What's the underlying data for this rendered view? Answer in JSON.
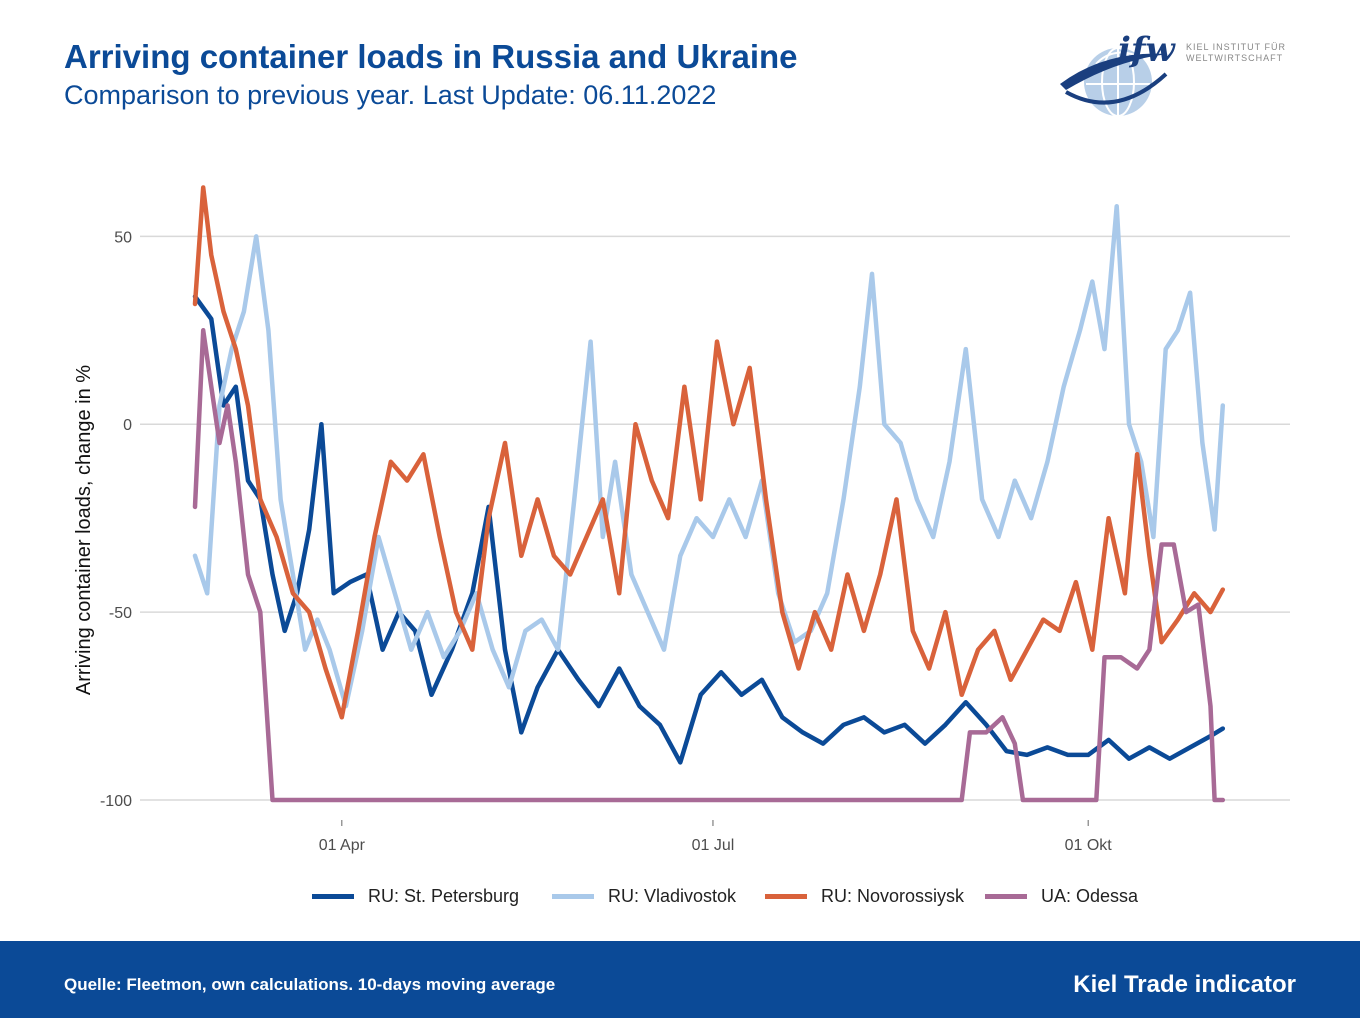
{
  "header": {
    "title": "Arriving container loads in Russia and Ukraine",
    "subtitle": "Comparison to previous year. Last Update: 06.11.2022"
  },
  "logo": {
    "mark": "ifw",
    "line1": "KIEL INSTITUT FÜR",
    "line2": "WELTWIRTSCHAFT",
    "icon": "globe-icon"
  },
  "footer": {
    "source": "Quelle: Fleetmon, own calculations. 10-days moving average",
    "brand": "Kiel Trade indicator",
    "background": "#0b4a97"
  },
  "chart_data": {
    "type": "line",
    "title": "Arriving container loads in Russia and Ukraine",
    "subtitle": "Comparison to previous year. Last Update: 06.11.2022",
    "xlabel": "",
    "ylabel": "Arriving container loads, change in %",
    "ylim": [
      -100,
      65
    ],
    "xlim": [
      "2022-02-24",
      "2022-11-06"
    ],
    "yticks": [
      -100,
      -50,
      0,
      50
    ],
    "xticks": [
      {
        "date": "2022-04-01",
        "label": "01 Apr"
      },
      {
        "date": "2022-07-01",
        "label": "01 Jul"
      },
      {
        "date": "2022-10-01",
        "label": "01 Okt"
      }
    ],
    "grid": "horizontal",
    "legend_position": "bottom",
    "series": [
      {
        "name": "RU: St. Petersburg",
        "color": "#0b4a97",
        "points": [
          [
            "2022-02-24",
            34
          ],
          [
            "2022-02-28",
            28
          ],
          [
            "2022-03-03",
            5
          ],
          [
            "2022-03-06",
            10
          ],
          [
            "2022-03-09",
            -15
          ],
          [
            "2022-03-12",
            -20
          ],
          [
            "2022-03-15",
            -40
          ],
          [
            "2022-03-18",
            -55
          ],
          [
            "2022-03-21",
            -45
          ],
          [
            "2022-03-24",
            -28
          ],
          [
            "2022-03-27",
            0
          ],
          [
            "2022-03-30",
            -45
          ],
          [
            "2022-04-03",
            -42
          ],
          [
            "2022-04-07",
            -40
          ],
          [
            "2022-04-11",
            -60
          ],
          [
            "2022-04-15",
            -50
          ],
          [
            "2022-04-19",
            -55
          ],
          [
            "2022-04-23",
            -72
          ],
          [
            "2022-04-28",
            -60
          ],
          [
            "2022-05-03",
            -45
          ],
          [
            "2022-05-07",
            -22
          ],
          [
            "2022-05-11",
            -60
          ],
          [
            "2022-05-15",
            -82
          ],
          [
            "2022-05-19",
            -70
          ],
          [
            "2022-05-24",
            -60
          ],
          [
            "2022-05-29",
            -68
          ],
          [
            "2022-06-03",
            -75
          ],
          [
            "2022-06-08",
            -65
          ],
          [
            "2022-06-13",
            -75
          ],
          [
            "2022-06-18",
            -80
          ],
          [
            "2022-06-23",
            -90
          ],
          [
            "2022-06-28",
            -72
          ],
          [
            "2022-07-03",
            -66
          ],
          [
            "2022-07-08",
            -72
          ],
          [
            "2022-07-13",
            -68
          ],
          [
            "2022-07-18",
            -78
          ],
          [
            "2022-07-23",
            -82
          ],
          [
            "2022-07-28",
            -85
          ],
          [
            "2022-08-02",
            -80
          ],
          [
            "2022-08-07",
            -78
          ],
          [
            "2022-08-12",
            -82
          ],
          [
            "2022-08-17",
            -80
          ],
          [
            "2022-08-22",
            -85
          ],
          [
            "2022-08-27",
            -80
          ],
          [
            "2022-09-01",
            -74
          ],
          [
            "2022-09-06",
            -80
          ],
          [
            "2022-09-11",
            -87
          ],
          [
            "2022-09-16",
            -88
          ],
          [
            "2022-09-21",
            -86
          ],
          [
            "2022-09-26",
            -88
          ],
          [
            "2022-10-01",
            -88
          ],
          [
            "2022-10-06",
            -84
          ],
          [
            "2022-10-11",
            -89
          ],
          [
            "2022-10-16",
            -86
          ],
          [
            "2022-10-21",
            -89
          ],
          [
            "2022-10-26",
            -86
          ],
          [
            "2022-10-31",
            -83
          ],
          [
            "2022-11-03",
            -81
          ]
        ]
      },
      {
        "name": "RU: Vladivostok",
        "color": "#a9c9ea",
        "points": [
          [
            "2022-02-24",
            -35
          ],
          [
            "2022-02-27",
            -45
          ],
          [
            "2022-03-02",
            5
          ],
          [
            "2022-03-05",
            20
          ],
          [
            "2022-03-08",
            30
          ],
          [
            "2022-03-11",
            50
          ],
          [
            "2022-03-14",
            25
          ],
          [
            "2022-03-17",
            -20
          ],
          [
            "2022-03-20",
            -40
          ],
          [
            "2022-03-23",
            -60
          ],
          [
            "2022-03-26",
            -52
          ],
          [
            "2022-03-29",
            -60
          ],
          [
            "2022-04-02",
            -75
          ],
          [
            "2022-04-06",
            -55
          ],
          [
            "2022-04-10",
            -30
          ],
          [
            "2022-04-14",
            -45
          ],
          [
            "2022-04-18",
            -60
          ],
          [
            "2022-04-22",
            -50
          ],
          [
            "2022-04-26",
            -62
          ],
          [
            "2022-04-30",
            -55
          ],
          [
            "2022-05-04",
            -45
          ],
          [
            "2022-05-08",
            -60
          ],
          [
            "2022-05-12",
            -70
          ],
          [
            "2022-05-16",
            -55
          ],
          [
            "2022-05-20",
            -52
          ],
          [
            "2022-05-24",
            -60
          ],
          [
            "2022-05-28",
            -20
          ],
          [
            "2022-06-01",
            22
          ],
          [
            "2022-06-04",
            -30
          ],
          [
            "2022-06-07",
            -10
          ],
          [
            "2022-06-11",
            -40
          ],
          [
            "2022-06-15",
            -50
          ],
          [
            "2022-06-19",
            -60
          ],
          [
            "2022-06-23",
            -35
          ],
          [
            "2022-06-27",
            -25
          ],
          [
            "2022-07-01",
            -30
          ],
          [
            "2022-07-05",
            -20
          ],
          [
            "2022-07-09",
            -30
          ],
          [
            "2022-07-13",
            -15
          ],
          [
            "2022-07-17",
            -45
          ],
          [
            "2022-07-21",
            -58
          ],
          [
            "2022-07-25",
            -55
          ],
          [
            "2022-07-29",
            -45
          ],
          [
            "2022-08-02",
            -20
          ],
          [
            "2022-08-06",
            10
          ],
          [
            "2022-08-09",
            40
          ],
          [
            "2022-08-12",
            0
          ],
          [
            "2022-08-16",
            -5
          ],
          [
            "2022-08-20",
            -20
          ],
          [
            "2022-08-24",
            -30
          ],
          [
            "2022-08-28",
            -10
          ],
          [
            "2022-09-01",
            20
          ],
          [
            "2022-09-05",
            -20
          ],
          [
            "2022-09-09",
            -30
          ],
          [
            "2022-09-13",
            -15
          ],
          [
            "2022-09-17",
            -25
          ],
          [
            "2022-09-21",
            -10
          ],
          [
            "2022-09-25",
            10
          ],
          [
            "2022-09-29",
            25
          ],
          [
            "2022-10-02",
            38
          ],
          [
            "2022-10-05",
            20
          ],
          [
            "2022-10-08",
            58
          ],
          [
            "2022-10-11",
            0
          ],
          [
            "2022-10-14",
            -10
          ],
          [
            "2022-10-17",
            -30
          ],
          [
            "2022-10-20",
            20
          ],
          [
            "2022-10-23",
            25
          ],
          [
            "2022-10-26",
            35
          ],
          [
            "2022-10-29",
            -5
          ],
          [
            "2022-11-01",
            -28
          ],
          [
            "2022-11-03",
            5
          ]
        ]
      },
      {
        "name": "RU: Novorossiysk",
        "color": "#d9623b",
        "points": [
          [
            "2022-02-24",
            32
          ],
          [
            "2022-02-26",
            63
          ],
          [
            "2022-02-28",
            45
          ],
          [
            "2022-03-03",
            30
          ],
          [
            "2022-03-06",
            20
          ],
          [
            "2022-03-09",
            5
          ],
          [
            "2022-03-12",
            -20
          ],
          [
            "2022-03-16",
            -30
          ],
          [
            "2022-03-20",
            -45
          ],
          [
            "2022-03-24",
            -50
          ],
          [
            "2022-03-28",
            -65
          ],
          [
            "2022-04-01",
            -78
          ],
          [
            "2022-04-05",
            -55
          ],
          [
            "2022-04-09",
            -30
          ],
          [
            "2022-04-13",
            -10
          ],
          [
            "2022-04-17",
            -15
          ],
          [
            "2022-04-21",
            -8
          ],
          [
            "2022-04-25",
            -30
          ],
          [
            "2022-04-29",
            -50
          ],
          [
            "2022-05-03",
            -60
          ],
          [
            "2022-05-07",
            -25
          ],
          [
            "2022-05-11",
            -5
          ],
          [
            "2022-05-15",
            -35
          ],
          [
            "2022-05-19",
            -20
          ],
          [
            "2022-05-23",
            -35
          ],
          [
            "2022-05-27",
            -40
          ],
          [
            "2022-05-31",
            -30
          ],
          [
            "2022-06-04",
            -20
          ],
          [
            "2022-06-08",
            -45
          ],
          [
            "2022-06-12",
            0
          ],
          [
            "2022-06-16",
            -15
          ],
          [
            "2022-06-20",
            -25
          ],
          [
            "2022-06-24",
            10
          ],
          [
            "2022-06-28",
            -20
          ],
          [
            "2022-07-02",
            22
          ],
          [
            "2022-07-06",
            0
          ],
          [
            "2022-07-10",
            15
          ],
          [
            "2022-07-14",
            -20
          ],
          [
            "2022-07-18",
            -50
          ],
          [
            "2022-07-22",
            -65
          ],
          [
            "2022-07-26",
            -50
          ],
          [
            "2022-07-30",
            -60
          ],
          [
            "2022-08-03",
            -40
          ],
          [
            "2022-08-07",
            -55
          ],
          [
            "2022-08-11",
            -40
          ],
          [
            "2022-08-15",
            -20
          ],
          [
            "2022-08-19",
            -55
          ],
          [
            "2022-08-23",
            -65
          ],
          [
            "2022-08-27",
            -50
          ],
          [
            "2022-08-31",
            -72
          ],
          [
            "2022-09-04",
            -60
          ],
          [
            "2022-09-08",
            -55
          ],
          [
            "2022-09-12",
            -68
          ],
          [
            "2022-09-16",
            -60
          ],
          [
            "2022-09-20",
            -52
          ],
          [
            "2022-09-24",
            -55
          ],
          [
            "2022-09-28",
            -42
          ],
          [
            "2022-10-02",
            -60
          ],
          [
            "2022-10-06",
            -25
          ],
          [
            "2022-10-10",
            -45
          ],
          [
            "2022-10-13",
            -8
          ],
          [
            "2022-10-16",
            -35
          ],
          [
            "2022-10-19",
            -58
          ],
          [
            "2022-10-23",
            -52
          ],
          [
            "2022-10-27",
            -45
          ],
          [
            "2022-10-31",
            -50
          ],
          [
            "2022-11-03",
            -44
          ]
        ]
      },
      {
        "name": "UA: Odessa",
        "color": "#a86a96",
        "points": [
          [
            "2022-02-24",
            -22
          ],
          [
            "2022-02-26",
            25
          ],
          [
            "2022-02-28",
            10
          ],
          [
            "2022-03-02",
            -5
          ],
          [
            "2022-03-04",
            5
          ],
          [
            "2022-03-06",
            -10
          ],
          [
            "2022-03-09",
            -40
          ],
          [
            "2022-03-12",
            -50
          ],
          [
            "2022-03-15",
            -100
          ],
          [
            "2022-08-31",
            -100
          ],
          [
            "2022-09-02",
            -82
          ],
          [
            "2022-09-06",
            -82
          ],
          [
            "2022-09-10",
            -78
          ],
          [
            "2022-09-13",
            -85
          ],
          [
            "2022-09-15",
            -100
          ],
          [
            "2022-10-03",
            -100
          ],
          [
            "2022-10-05",
            -62
          ],
          [
            "2022-10-09",
            -62
          ],
          [
            "2022-10-13",
            -65
          ],
          [
            "2022-10-16",
            -60
          ],
          [
            "2022-10-19",
            -32
          ],
          [
            "2022-10-22",
            -32
          ],
          [
            "2022-10-25",
            -50
          ],
          [
            "2022-10-28",
            -48
          ],
          [
            "2022-10-31",
            -75
          ],
          [
            "2022-11-01",
            -100
          ],
          [
            "2022-11-03",
            -100
          ]
        ]
      }
    ]
  }
}
